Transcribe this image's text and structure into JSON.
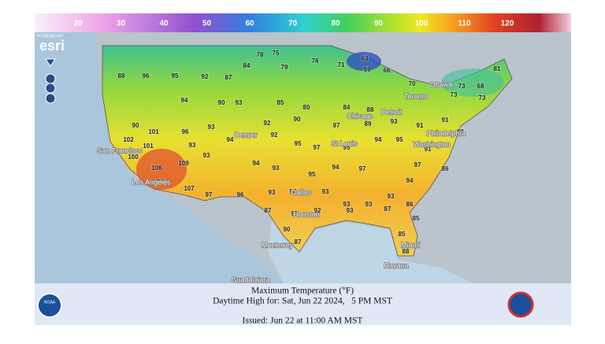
{
  "color_scale": {
    "labels": [
      20,
      30,
      40,
      50,
      60,
      70,
      80,
      90,
      100,
      110,
      120
    ]
  },
  "esri": {
    "powered": "POWERED BY",
    "logo": "esri"
  },
  "cities": [
    "San Francisco",
    "Los Angeles",
    "Denver",
    "Chicago",
    "Detroit",
    "Toronto",
    "Ottawa",
    "Philadelphia",
    "Washington",
    "St Louis",
    "Dallas",
    "Houston",
    "Monterrey",
    "Miami",
    "Havana",
    "Guadalajara"
  ],
  "temperatures": [
    88,
    96,
    95,
    92,
    87,
    84,
    78,
    75,
    79,
    76,
    71,
    63,
    59,
    66,
    70,
    67,
    73,
    68,
    81,
    73,
    73,
    94,
    90,
    93,
    85,
    80,
    84,
    88,
    90,
    101,
    96,
    93,
    92,
    90,
    97,
    89,
    93,
    91,
    91,
    91,
    102,
    101,
    93,
    94,
    92,
    95,
    97,
    95,
    94,
    95,
    91,
    100,
    106,
    109,
    93,
    94,
    93,
    95,
    94,
    97,
    97,
    86,
    97,
    107,
    97,
    96,
    93,
    94,
    93,
    93,
    93,
    93,
    94,
    87,
    93,
    92,
    93,
    87,
    86,
    85,
    85,
    88,
    87,
    90
  ],
  "footer": {
    "title": "Maximum Temperature (°F)",
    "subtitle": "Daytime High for: Sat, Jun 22 2024,   5 PM MST",
    "issued": "Issued: Jun 22 at 11:00 AM MST",
    "noaa": "NOAA"
  }
}
